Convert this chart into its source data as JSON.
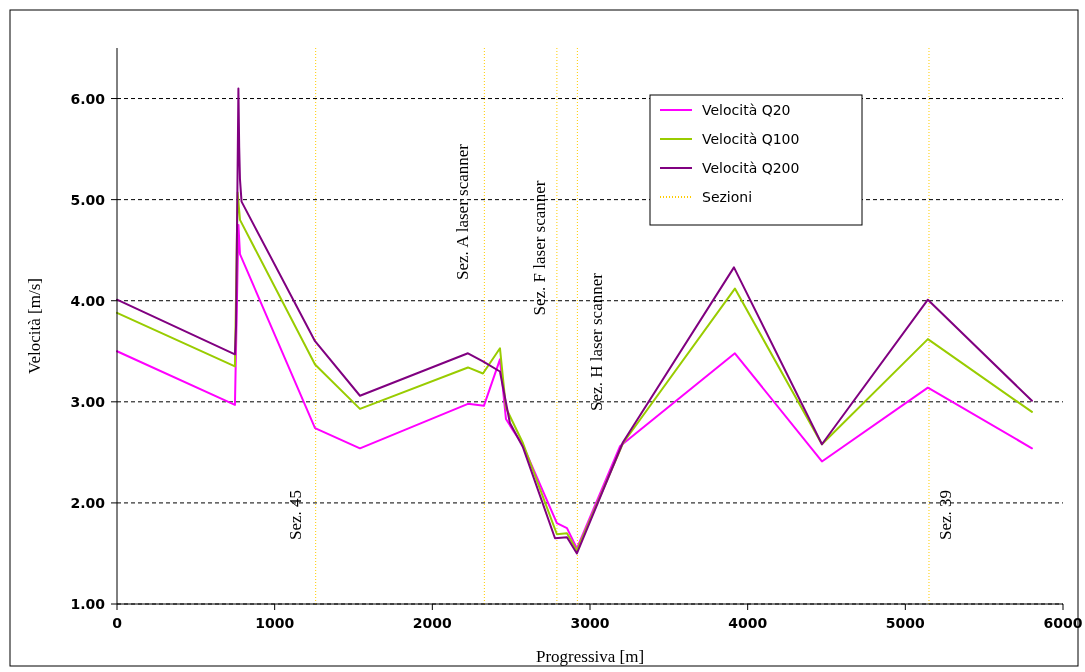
{
  "chart_data": {
    "type": "line",
    "xlabel": "Progressiva [m]",
    "ylabel": "Velocità [m/s]",
    "xlim": [
      0,
      6000
    ],
    "xticks": [
      0,
      1000,
      2000,
      3000,
      4000,
      5000,
      6000
    ],
    "ylim": [
      1,
      6.5
    ],
    "yticks": [
      {
        "value": 1,
        "label": "1.00"
      },
      {
        "value": 2,
        "label": "2.00"
      },
      {
        "value": 3,
        "label": "3.00"
      },
      {
        "value": 4,
        "label": "4.00"
      },
      {
        "value": 5,
        "label": "5.00"
      },
      {
        "value": 6,
        "label": "6.00"
      }
    ],
    "grid": "y",
    "legend": "top right",
    "marker": "none",
    "line_style": "solid",
    "series": [
      {
        "name": "Velocità Q20",
        "color": "#ff00ff",
        "x": [
          0,
          748,
          770,
          780,
          1256,
          1541,
          2226,
          2327,
          2429,
          2467,
          2511,
          2575,
          2790,
          2854,
          2917,
          3190,
          3919,
          4471,
          5143,
          5803
        ],
        "values": [
          3.5,
          2.97,
          4.75,
          4.46,
          2.74,
          2.54,
          2.98,
          2.96,
          3.42,
          2.83,
          2.72,
          2.57,
          1.8,
          1.75,
          1.55,
          2.56,
          3.48,
          2.41,
          3.14,
          2.54
        ]
      },
      {
        "name": "Velocità Q100",
        "color": "#99cc00",
        "x": [
          0,
          748,
          765,
          780,
          1256,
          1541,
          2226,
          2321,
          2429,
          2467,
          2575,
          2790,
          2854,
          2917,
          3209,
          3919,
          4471,
          5143,
          5803
        ],
        "values": [
          3.88,
          3.35,
          5.07,
          4.8,
          3.37,
          2.93,
          3.34,
          3.28,
          3.53,
          2.94,
          2.59,
          1.69,
          1.7,
          1.53,
          2.59,
          4.12,
          2.58,
          3.62,
          2.9
        ]
      },
      {
        "name": "Velocità Q200",
        "color": "#800080",
        "x": [
          0,
          748,
          755,
          770,
          775,
          780,
          790,
          1256,
          1541,
          2226,
          2321,
          2429,
          2492,
          2575,
          2778,
          2854,
          2917,
          3209,
          3913,
          4471,
          5143,
          5803
        ],
        "values": [
          4.01,
          3.47,
          3.75,
          6.1,
          5.52,
          5.2,
          4.98,
          3.6,
          3.06,
          3.48,
          3.4,
          3.3,
          2.79,
          2.55,
          1.65,
          1.66,
          1.5,
          2.6,
          4.33,
          2.58,
          4.01,
          3.01
        ]
      }
    ],
    "ref_lines": [
      {
        "axis": "x",
        "value": 1260,
        "color": "#ffcc00",
        "line_style": "dotted",
        "label": "Sez. 45"
      },
      {
        "axis": "x",
        "value": 2330,
        "color": "#ffcc00",
        "line_style": "dotted",
        "label": "Sez. A laser scanner"
      },
      {
        "axis": "x",
        "value": 2790,
        "color": "#ffcc00",
        "line_style": "dotted",
        "label": "Sez. F laser scanner"
      },
      {
        "axis": "x",
        "value": 2920,
        "color": "#ffcc00",
        "line_style": "dotted",
        "label": "Sez. H laser scanner"
      },
      {
        "axis": "x",
        "value": 5150,
        "color": "#ffcc00",
        "line_style": "dotted",
        "label": "Sez. 39"
      }
    ],
    "legend_title": "Sezioni"
  }
}
